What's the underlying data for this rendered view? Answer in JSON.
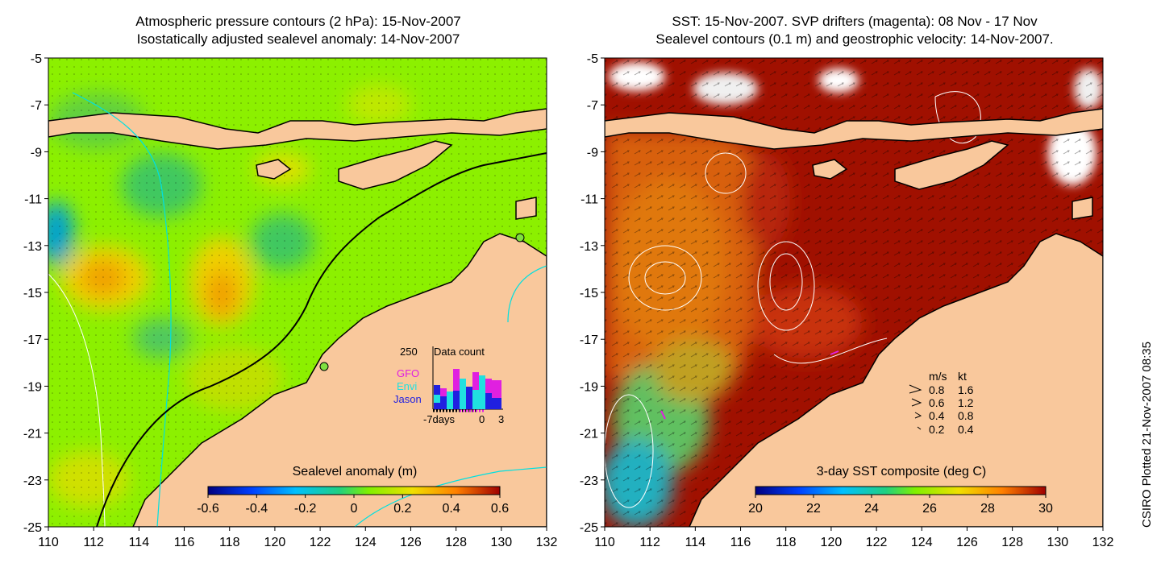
{
  "left_panel": {
    "title_line1": "Atmospheric pressure contours (2 hPa): 15-Nov-2007",
    "title_line2": "Isostatically adjusted sealevel anomaly: 14-Nov-2007",
    "x_ticks": [
      "110",
      "112",
      "114",
      "116",
      "118",
      "120",
      "122",
      "124",
      "126",
      "128",
      "130",
      "132"
    ],
    "y_ticks": [
      "-5",
      "-7",
      "-9",
      "-11",
      "-13",
      "-15",
      "-17",
      "-19",
      "-21",
      "-23",
      "-25"
    ],
    "colorbar_title": "Sealevel anomaly (m)",
    "colorbar_ticks": [
      "-0.6",
      "-0.4",
      "-0.2",
      "0",
      "0.2",
      "0.4",
      "0.6"
    ],
    "inset": {
      "max_label": "250",
      "title": "Data count",
      "legend": [
        {
          "label": "GFO",
          "color": "#e020e0"
        },
        {
          "label": "Envi",
          "color": "#20e0e0"
        },
        {
          "label": "Jason",
          "color": "#2020e0"
        }
      ],
      "x_left": "-7days",
      "x_zero": "0",
      "x_right": "3"
    }
  },
  "right_panel": {
    "title_line1": "SST: 15-Nov-2007. SVP drifters (magenta): 08 Nov - 17 Nov",
    "title_line2": "Sealevel contours (0.1 m) and geostrophic velocity: 14-Nov-2007.",
    "x_ticks": [
      "110",
      "112",
      "114",
      "116",
      "118",
      "120",
      "122",
      "124",
      "126",
      "128",
      "130",
      "132"
    ],
    "y_ticks": [
      "-5",
      "-7",
      "-9",
      "-11",
      "-13",
      "-15",
      "-17",
      "-19",
      "-21",
      "-23",
      "-25"
    ],
    "colorbar_title": "3-day SST composite (deg C)",
    "colorbar_ticks": [
      "20",
      "22",
      "24",
      "26",
      "28",
      "30"
    ],
    "velocity_legend": {
      "header_ms": "m/s",
      "header_kt": "kt",
      "rows": [
        {
          "ms": "0.8",
          "kt": "1.6"
        },
        {
          "ms": "0.6",
          "kt": "1.2"
        },
        {
          "ms": "0.4",
          "kt": "0.8"
        },
        {
          "ms": "0.2",
          "kt": "0.4"
        }
      ]
    }
  },
  "credit": "CSIRO Plotted 21-Nov-2007 08:35",
  "colors": {
    "land": "#f9c89c",
    "sla_base": "#8cf000",
    "sst_warm": "#a01000",
    "sst_mid": "#e07010"
  }
}
